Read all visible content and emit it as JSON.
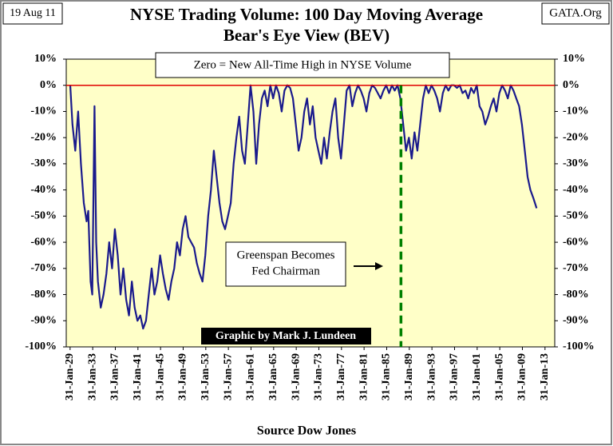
{
  "chart_data": {
    "type": "line",
    "title": "NYSE Trading Volume: 100 Day Moving Average",
    "subtitle": "Bear's Eye View (BEV)",
    "date_label": "19 Aug 11",
    "site_label": "GATA.Org",
    "x_axis_label": "Source Dow Jones",
    "annotations": [
      "Zero = New All-Time High in NYSE Volume",
      "Greenspan Becomes",
      "Fed Chairman",
      "Graphic by Mark J. Lundeen"
    ],
    "color": "#1a1a8c",
    "x": [
      1929.1,
      1929.5,
      1930,
      1930.5,
      1931,
      1931.5,
      1932,
      1932.3,
      1932.7,
      1933,
      1933.4,
      1933.7,
      1934,
      1934.5,
      1935,
      1935.5,
      1936,
      1936.5,
      1937,
      1937.5,
      1938,
      1938.5,
      1939,
      1939.5,
      1940,
      1940.5,
      1941,
      1941.5,
      1942,
      1942.5,
      1943,
      1943.5,
      1944,
      1944.5,
      1945,
      1945.5,
      1946,
      1946.5,
      1947,
      1947.5,
      1948,
      1948.5,
      1949,
      1949.5,
      1950,
      1950.5,
      1951,
      1951.5,
      1952,
      1952.5,
      1953,
      1953.5,
      1954,
      1954.5,
      1955,
      1955.5,
      1956,
      1956.5,
      1957,
      1957.5,
      1958,
      1958.5,
      1959,
      1959.5,
      1960,
      1960.5,
      1961,
      1961.5,
      1962,
      1962.5,
      1963,
      1963.5,
      1964,
      1964.5,
      1965,
      1965.5,
      1966,
      1966.5,
      1967,
      1967.5,
      1968,
      1968.5,
      1969,
      1969.5,
      1970,
      1970.5,
      1971,
      1971.5,
      1972,
      1972.5,
      1973,
      1973.5,
      1974,
      1974.5,
      1975,
      1975.5,
      1976,
      1976.5,
      1977,
      1977.5,
      1978,
      1978.5,
      1979,
      1979.5,
      1980,
      1980.5,
      1981,
      1981.5,
      1982,
      1982.5,
      1983,
      1983.5,
      1984,
      1984.5,
      1985,
      1985.5,
      1986,
      1986.5,
      1987,
      1987.5,
      1988,
      1988.5,
      1989,
      1989.5,
      1990,
      1990.5,
      1991,
      1991.5,
      1992,
      1992.5,
      1993,
      1993.5,
      1994,
      1994.5,
      1995,
      1995.5,
      1996,
      1996.5,
      1997,
      1997.5,
      1998,
      1998.5,
      1999,
      1999.5,
      2000,
      2000.5,
      2001,
      2001.5,
      2002,
      2002.5,
      2003,
      2003.5,
      2004,
      2004.5,
      2005,
      2005.5,
      2006,
      2006.5,
      2007,
      2007.5,
      2008,
      2008.5,
      2009,
      2009.5,
      2010,
      2010.5,
      2011,
      2011.6
    ],
    "values": [
      0,
      -15,
      -25,
      -10,
      -30,
      -45,
      -52,
      -48,
      -75,
      -80,
      -8,
      -60,
      -75,
      -85,
      -80,
      -72,
      -60,
      -70,
      -55,
      -65,
      -80,
      -70,
      -82,
      -88,
      -75,
      -85,
      -90,
      -88,
      -93,
      -90,
      -80,
      -70,
      -80,
      -75,
      -65,
      -72,
      -78,
      -82,
      -75,
      -70,
      -60,
      -65,
      -55,
      -50,
      -58,
      -60,
      -62,
      -68,
      -72,
      -75,
      -65,
      -50,
      -40,
      -25,
      -35,
      -45,
      -52,
      -55,
      -50,
      -45,
      -30,
      -20,
      -12,
      -25,
      -30,
      -15,
      0,
      -10,
      -30,
      -15,
      -5,
      -2,
      -8,
      0,
      -5,
      0,
      -3,
      -10,
      -2,
      0,
      -1,
      -5,
      -15,
      -25,
      -20,
      -10,
      -5,
      -15,
      -8,
      -20,
      -25,
      -30,
      -20,
      -28,
      -18,
      -10,
      -5,
      -20,
      -28,
      -15,
      -2,
      0,
      -8,
      -3,
      0,
      -2,
      -5,
      -10,
      -3,
      0,
      -1,
      -3,
      -5,
      -2,
      0,
      -3,
      0,
      -2,
      0,
      -5,
      -15,
      -25,
      -20,
      -28,
      -18,
      -25,
      -15,
      -5,
      0,
      -3,
      0,
      -2,
      -5,
      -10,
      -3,
      0,
      -2,
      0,
      0,
      -1,
      0,
      -3,
      -2,
      -5,
      -1,
      -3,
      0,
      -8,
      -10,
      -15,
      -12,
      -8,
      -5,
      -10,
      -3,
      0,
      -2,
      -5,
      0,
      -2,
      -5,
      -8,
      -15,
      -25,
      -35,
      -40,
      -43,
      -47
    ],
    "reference_line": {
      "value": 0,
      "color": "#e00000"
    },
    "event_line": {
      "x": 1987.6,
      "color": "#008000"
    },
    "xlim": [
      1928.4,
      2014.8
    ],
    "xticks": [
      {
        "value": 1929.08,
        "label": "31-Jan-29"
      },
      {
        "value": 1933.08,
        "label": "31-Jan-33"
      },
      {
        "value": 1937.08,
        "label": "31-Jan-37"
      },
      {
        "value": 1941.08,
        "label": "31-Jan-41"
      },
      {
        "value": 1945.08,
        "label": "31-Jan-45"
      },
      {
        "value": 1949.08,
        "label": "31-Jan-49"
      },
      {
        "value": 1953.08,
        "label": "31-Jan-53"
      },
      {
        "value": 1957.08,
        "label": "31-Jan-57"
      },
      {
        "value": 1961.08,
        "label": "31-Jan-61"
      },
      {
        "value": 1965.08,
        "label": "31-Jan-65"
      },
      {
        "value": 1969.08,
        "label": "31-Jan-69"
      },
      {
        "value": 1973.08,
        "label": "31-Jan-73"
      },
      {
        "value": 1977.08,
        "label": "31-Jan-77"
      },
      {
        "value": 1981.08,
        "label": "31-Jan-81"
      },
      {
        "value": 1985.08,
        "label": "31-Jan-85"
      },
      {
        "value": 1989.08,
        "label": "31-Jan-89"
      },
      {
        "value": 1993.08,
        "label": "31-Jan-93"
      },
      {
        "value": 1997.08,
        "label": "31-Jan-97"
      },
      {
        "value": 2001.08,
        "label": "31-Jan-01"
      },
      {
        "value": 2005.08,
        "label": "31-Jan-05"
      },
      {
        "value": 2009.08,
        "label": "31-Jan-09"
      },
      {
        "value": 2013.08,
        "label": "31-Jan-13"
      }
    ],
    "ylim": [
      -100,
      10
    ],
    "yticks": [
      {
        "value": 10,
        "label": "10%"
      },
      {
        "value": 0,
        "label": "0%"
      },
      {
        "value": -10,
        "label": "-10%"
      },
      {
        "value": -20,
        "label": "-20%"
      },
      {
        "value": -30,
        "label": "-30%"
      },
      {
        "value": -40,
        "label": "-40%"
      },
      {
        "value": -50,
        "label": "-50%"
      },
      {
        "value": -60,
        "label": "-60%"
      },
      {
        "value": -70,
        "label": "-70%"
      },
      {
        "value": -80,
        "label": "-80%"
      },
      {
        "value": -90,
        "label": "-90%"
      },
      {
        "value": -100,
        "label": "-100%"
      }
    ],
    "y2lim": [
      -100,
      10
    ],
    "y2ticks": [
      {
        "value": 10,
        "label": "10%"
      },
      {
        "value": 0,
        "label": "0%"
      },
      {
        "value": -10,
        "label": "-10%"
      },
      {
        "value": -20,
        "label": "-20%"
      },
      {
        "value": -30,
        "label": "-30%"
      },
      {
        "value": -40,
        "label": "-40%"
      },
      {
        "value": -50,
        "label": "-50%"
      },
      {
        "value": -60,
        "label": "-60%"
      },
      {
        "value": -70,
        "label": "-70%"
      },
      {
        "value": -80,
        "label": "-80%"
      },
      {
        "value": -90,
        "label": "-90%"
      },
      {
        "value": -100,
        "label": "-100%"
      }
    ]
  }
}
